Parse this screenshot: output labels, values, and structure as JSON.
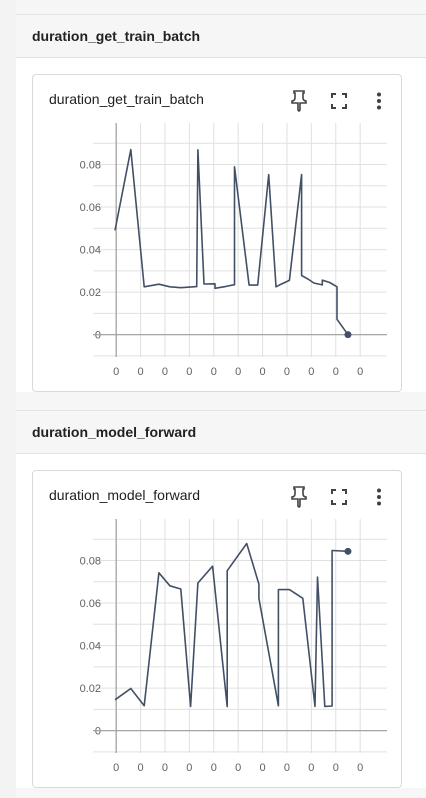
{
  "sections": [
    {
      "title": "duration_get_train_batch",
      "card_title": "duration_get_train_batch",
      "icons": [
        "pin-icon",
        "fullscreen-icon",
        "more-vert-icon"
      ]
    },
    {
      "title": "duration_model_forward",
      "card_title": "duration_model_forward",
      "icons": [
        "pin-icon",
        "fullscreen-icon",
        "more-vert-icon"
      ]
    }
  ],
  "colors": {
    "line": "#425066",
    "grid": "#e0e0e0",
    "axis": "#9e9e9e"
  },
  "chart_data": [
    {
      "type": "line",
      "title": "duration_get_train_batch",
      "xlabel": "",
      "ylabel": "",
      "x_tick_labels": [
        "0",
        "0",
        "0",
        "0",
        "0",
        "0",
        "0",
        "0",
        "0",
        "0",
        "0"
      ],
      "y_ticks": [
        0,
        0.02,
        0.04,
        0.06,
        0.08
      ],
      "y_tick_labels": [
        "0",
        "0.02",
        "0.04",
        "0.06",
        "0.08"
      ],
      "xlim": [
        -0.95,
        11.1
      ],
      "ylim": [
        -0.0105,
        0.0995
      ],
      "grid": true,
      "series": [
        {
          "x": [
            -0.05,
            0.6,
            1.15,
            1.75,
            2.2,
            2.65,
            3.3,
            3.35,
            3.6,
            4.05,
            4.05,
            4.5,
            4.85,
            4.85,
            5.45,
            5.8,
            6.25,
            6.55,
            6.7,
            7.1,
            7.6,
            7.6,
            7.9,
            8.1,
            8.45,
            8.45,
            8.75,
            8.75,
            9.05,
            9.05,
            9.5
          ],
          "y": [
            0.049,
            0.087,
            0.0225,
            0.0237,
            0.0225,
            0.0221,
            0.0226,
            0.0869,
            0.0238,
            0.0239,
            0.0218,
            0.0227,
            0.0235,
            0.0789,
            0.0233,
            0.0233,
            0.0752,
            0.0225,
            0.0234,
            0.0255,
            0.0753,
            0.0278,
            0.0259,
            0.0243,
            0.0234,
            0.0256,
            0.0245,
            0.0245,
            0.0225,
            0.0072,
            0.0
          ],
          "last_point_marker": true
        }
      ]
    },
    {
      "type": "line",
      "title": "duration_model_forward",
      "xlabel": "",
      "ylabel": "",
      "x_tick_labels": [
        "0",
        "0",
        "0",
        "0",
        "0",
        "0",
        "0",
        "0",
        "0",
        "0",
        "0"
      ],
      "y_ticks": [
        0,
        0.02,
        0.04,
        0.06,
        0.08
      ],
      "y_tick_labels": [
        "0",
        "0.02",
        "0.04",
        "0.06",
        "0.08"
      ],
      "xlim": [
        -0.95,
        11.1
      ],
      "ylim": [
        -0.0105,
        0.0995
      ],
      "grid": true,
      "series": [
        {
          "x": [
            -0.05,
            0.6,
            1.15,
            1.75,
            2.2,
            2.65,
            3.05,
            3.35,
            3.95,
            4.55,
            4.55,
            5.35,
            5.85,
            5.85,
            6.65,
            6.65,
            7.1,
            7.65,
            8.15,
            8.25,
            8.55,
            8.85,
            8.85,
            9.5
          ],
          "y": [
            0.0145,
            0.0198,
            0.0117,
            0.0742,
            0.0681,
            0.0666,
            0.0114,
            0.0694,
            0.0773,
            0.0113,
            0.0752,
            0.088,
            0.0689,
            0.0622,
            0.0117,
            0.0663,
            0.0663,
            0.0622,
            0.0114,
            0.0722,
            0.0114,
            0.0116,
            0.0847,
            0.0843
          ],
          "last_point_marker": true
        }
      ]
    }
  ]
}
